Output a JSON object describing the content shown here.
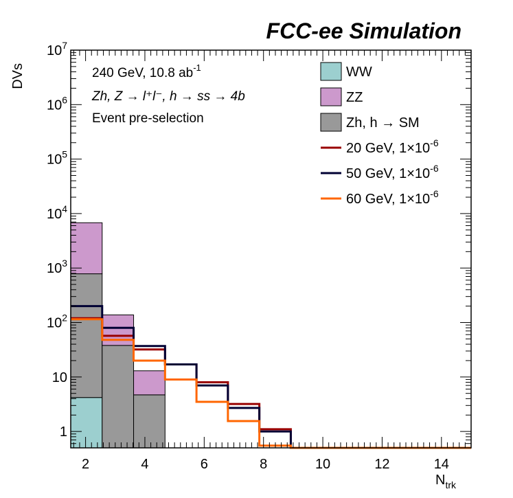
{
  "chart_data": {
    "type": "histogram",
    "title": "FCC-ee Simulation",
    "xlabel": "N",
    "xlabel_sub": "trk",
    "ylabel": "DVs",
    "y_scale": "log",
    "ylim": [
      0.5,
      10000000
    ],
    "xlim": [
      1.5,
      15
    ],
    "x_ticks": [
      2,
      4,
      6,
      8,
      10,
      12,
      14
    ],
    "y_ticks": [
      {
        "value": 1,
        "base": "1",
        "exp": ""
      },
      {
        "value": 10,
        "base": "10",
        "exp": ""
      },
      {
        "value": 100,
        "base": "10",
        "exp": "2"
      },
      {
        "value": 1000,
        "base": "10",
        "exp": "3"
      },
      {
        "value": 10000,
        "base": "10",
        "exp": "4"
      },
      {
        "value": 100000,
        "base": "10",
        "exp": "5"
      },
      {
        "value": 1000000,
        "base": "10",
        "exp": "6"
      },
      {
        "value": 10000000,
        "base": "10",
        "exp": "7"
      }
    ],
    "bin_edges": [
      1.5,
      2.56,
      3.62,
      4.68,
      5.74,
      6.8,
      7.86,
      8.92,
      9.98,
      11.04,
      12.1,
      13.16,
      14.22,
      15.0
    ],
    "annotations": {
      "energy_lumi": "240 GeV, 10.8 ab",
      "lumi_exp": "-1",
      "process": "Zh, Z → l⁺l⁻, h → ss → 4b",
      "selection": "Event pre-selection"
    },
    "stacked_series": [
      {
        "name": "WW",
        "color": "#9ccfcf",
        "values": [
          4.2,
          0,
          0,
          0,
          0,
          0,
          0,
          0,
          0,
          0,
          0,
          0,
          0
        ]
      },
      {
        "name": "Zh, h → SM",
        "color": "#999999",
        "values": [
          780,
          38,
          4.7,
          0,
          0,
          0,
          0,
          0,
          0,
          0,
          0,
          0,
          0
        ]
      },
      {
        "name": "ZZ",
        "color": "#cc99cc",
        "values": [
          6000,
          100,
          8.3,
          0,
          0,
          0,
          0,
          0,
          0,
          0,
          0,
          0,
          0
        ]
      }
    ],
    "line_series": [
      {
        "name": "20 GeV, 1×10",
        "exp": "-6",
        "color": "#990000",
        "values": [
          120,
          57,
          32,
          17,
          8,
          3.2,
          1.1,
          0.5,
          0.5,
          0.5,
          0.5,
          0.5,
          0.5
        ]
      },
      {
        "name": "50 GeV, 1×10",
        "exp": "-6",
        "color": "#000033",
        "values": [
          200,
          80,
          37,
          17,
          7,
          2.7,
          1.0,
          0.5,
          0.5,
          0.5,
          0.5,
          0.5,
          0.5
        ]
      },
      {
        "name": "60 GeV, 1×10",
        "exp": "-6",
        "color": "#ff6600",
        "values": [
          115,
          48,
          20,
          9,
          3.5,
          1.55,
          0.55,
          0.5,
          0.5,
          0.5,
          0.5,
          0.5,
          0.5
        ]
      }
    ],
    "legend": [
      {
        "label": "WW",
        "exp": "",
        "kind": "box",
        "color": "#9ccfcf"
      },
      {
        "label": "ZZ",
        "exp": "",
        "kind": "box",
        "color": "#cc99cc"
      },
      {
        "label": "Zh, h → SM",
        "exp": "",
        "kind": "box",
        "color": "#999999"
      },
      {
        "label": "20 GeV, 1×10",
        "exp": "-6",
        "kind": "line",
        "color": "#990000"
      },
      {
        "label": "50 GeV, 1×10",
        "exp": "-6",
        "kind": "line",
        "color": "#000033"
      },
      {
        "label": "60 GeV, 1×10",
        "exp": "-6",
        "kind": "line",
        "color": "#ff6600"
      }
    ],
    "legend_position": "top-right"
  }
}
